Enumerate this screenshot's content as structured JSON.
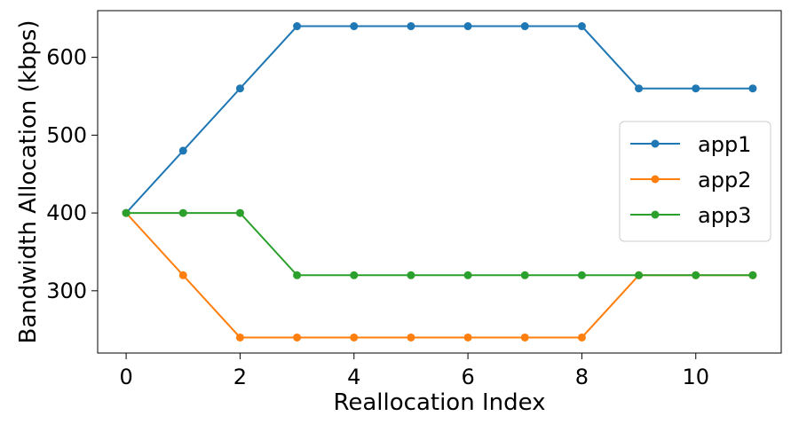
{
  "chart_data": {
    "type": "line",
    "title": "",
    "xlabel": "Reallocation Index",
    "ylabel": "Bandwidth Allocation (kbps)",
    "x": [
      0,
      1,
      2,
      3,
      4,
      5,
      6,
      7,
      8,
      9,
      10,
      11
    ],
    "xlim": [
      -0.5,
      11.5
    ],
    "ylim": [
      220,
      660
    ],
    "xticks": [
      0,
      2,
      4,
      6,
      8,
      10
    ],
    "yticks": [
      300,
      400,
      500,
      600
    ],
    "grid": false,
    "legend_position": "center-right",
    "series": [
      {
        "name": "app1",
        "color": "#1f77b4",
        "marker": "circle",
        "values": [
          400,
          480,
          560,
          640,
          640,
          640,
          640,
          640,
          640,
          560,
          560,
          560
        ]
      },
      {
        "name": "app2",
        "color": "#ff7f0e",
        "marker": "circle",
        "values": [
          400,
          320,
          240,
          240,
          240,
          240,
          240,
          240,
          240,
          320,
          320,
          320
        ]
      },
      {
        "name": "app3",
        "color": "#2ca02c",
        "marker": "circle",
        "values": [
          400,
          400,
          400,
          320,
          320,
          320,
          320,
          320,
          320,
          320,
          320,
          320
        ]
      }
    ]
  }
}
